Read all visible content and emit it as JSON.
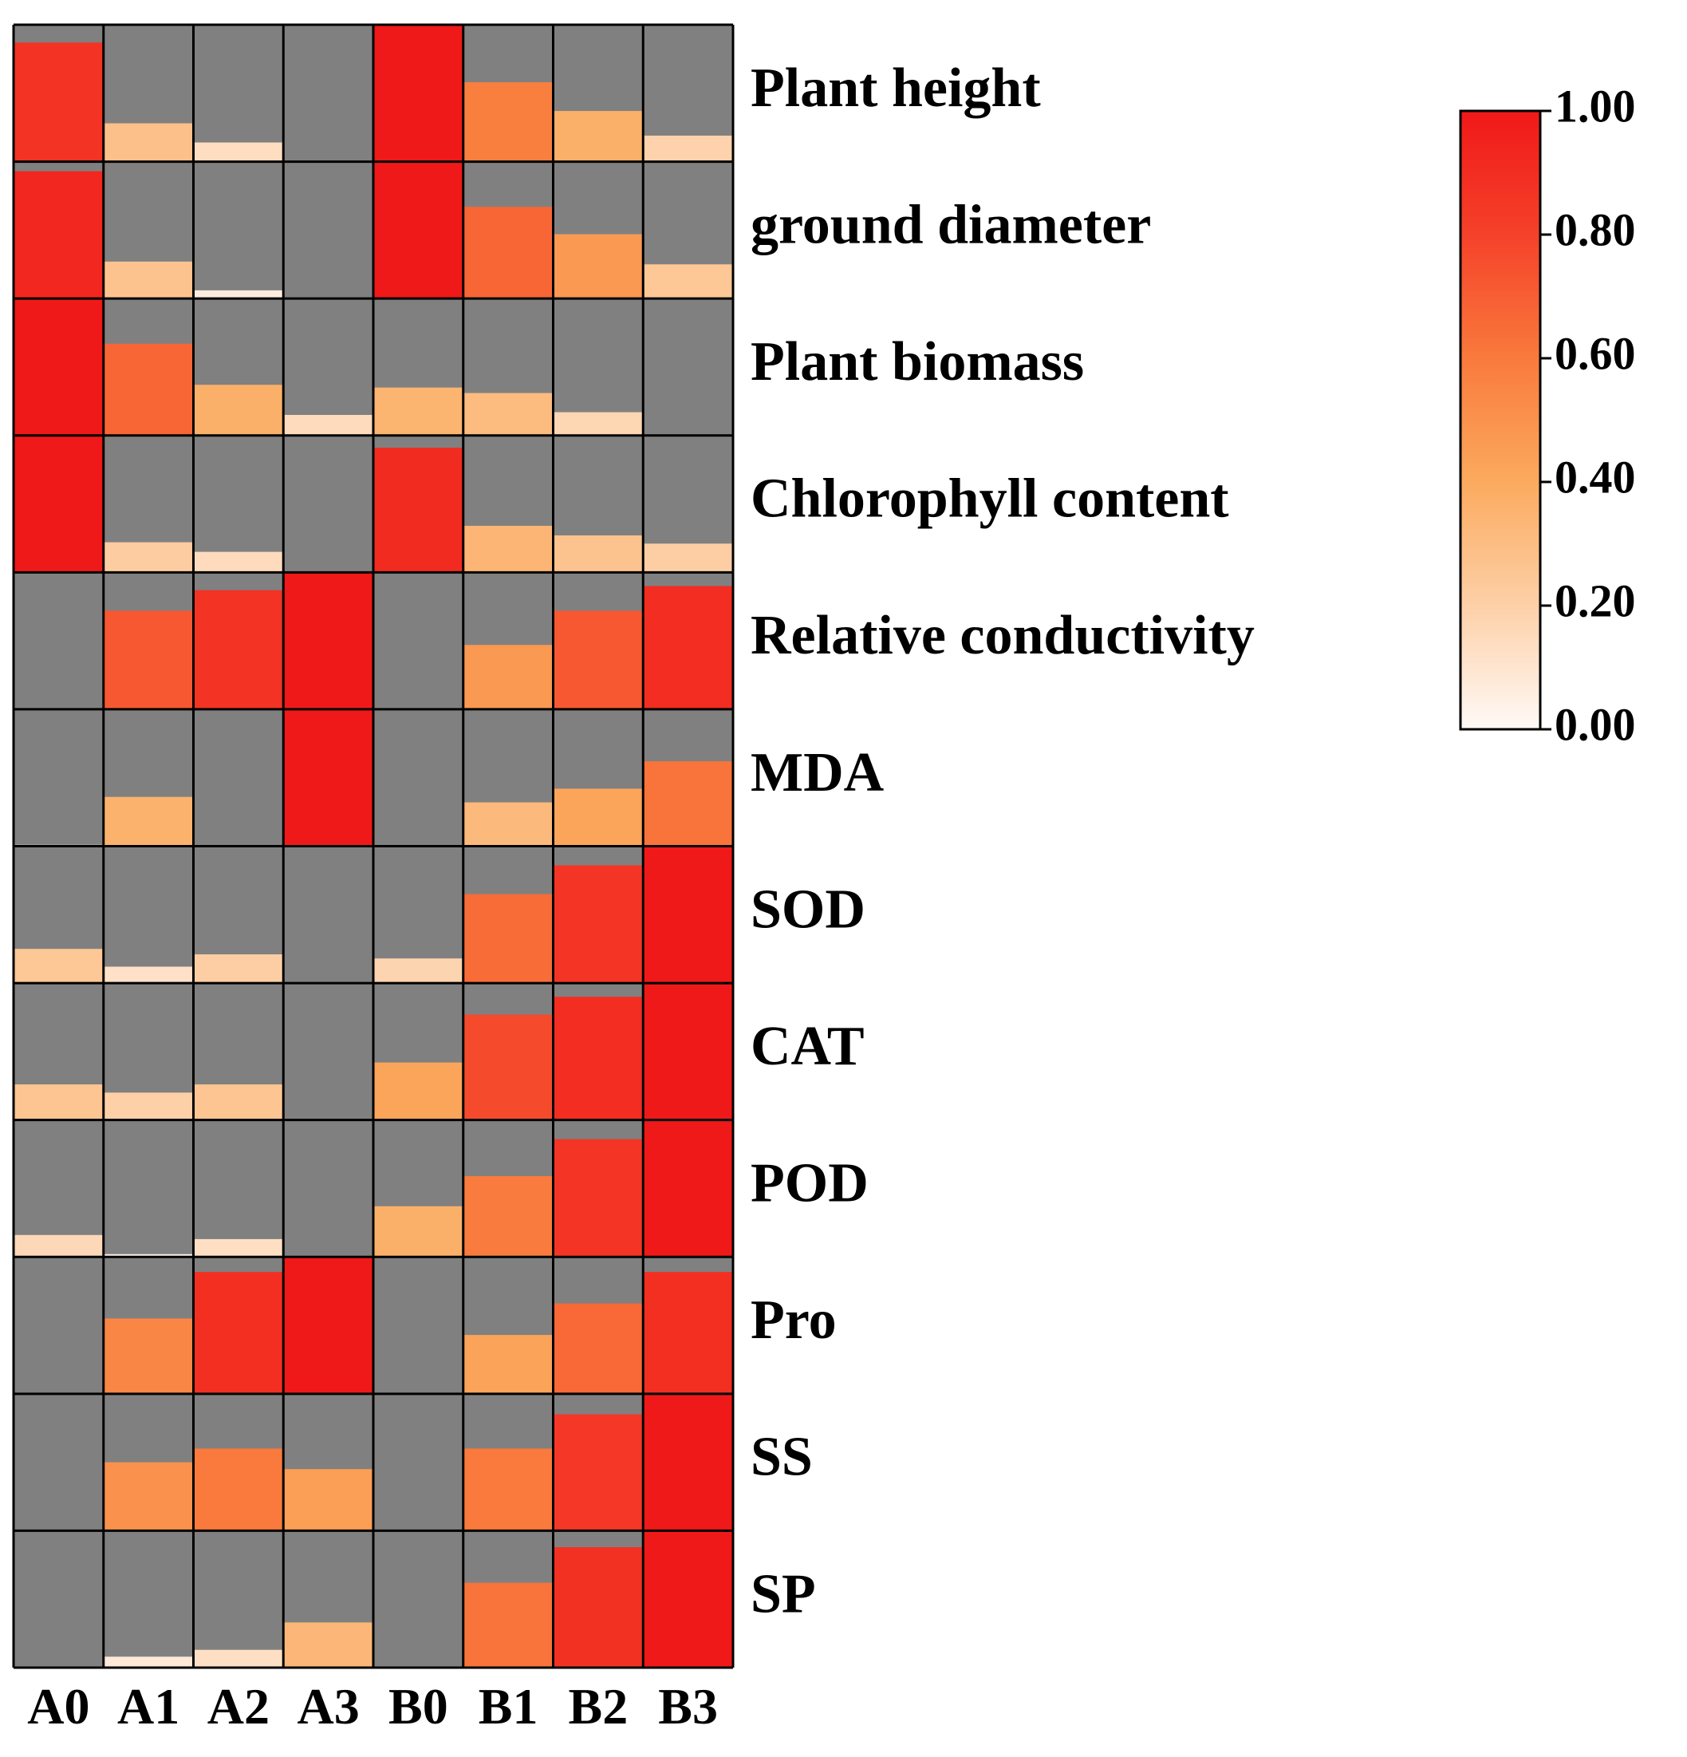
{
  "chart_data": {
    "type": "heatmap",
    "style": "bar-filled cells (fill height proportional to value)",
    "title": "",
    "xlabel": "",
    "ylabel": "",
    "columns": [
      "A0",
      "A1",
      "A2",
      "A3",
      "B0",
      "B1",
      "B2",
      "B3"
    ],
    "rows": [
      "Plant height",
      "ground diameter",
      "Plant biomass",
      "Chlorophyll content",
      "Relative conductivity",
      "MDA",
      "SOD",
      "CAT",
      "POD",
      "Pro",
      "SS",
      "SP"
    ],
    "values": [
      [
        0.87,
        0.28,
        0.14,
        0.0,
        1.0,
        0.58,
        0.37,
        0.19
      ],
      [
        0.93,
        0.27,
        0.06,
        0.0,
        1.0,
        0.67,
        0.47,
        0.25
      ],
      [
        1.0,
        0.67,
        0.37,
        0.15,
        0.35,
        0.31,
        0.17,
        0.0
      ],
      [
        1.0,
        0.22,
        0.15,
        0.0,
        0.91,
        0.34,
        0.27,
        0.21
      ],
      [
        0.0,
        0.72,
        0.87,
        1.0,
        0.0,
        0.47,
        0.72,
        0.9
      ],
      [
        0.01,
        0.36,
        0.0,
        1.0,
        0.0,
        0.32,
        0.42,
        0.62
      ],
      [
        0.25,
        0.12,
        0.21,
        0.0,
        0.18,
        0.65,
        0.86,
        1.0
      ],
      [
        0.26,
        0.2,
        0.26,
        0.0,
        0.42,
        0.77,
        0.9,
        1.0
      ],
      [
        0.16,
        0.02,
        0.13,
        0.0,
        0.37,
        0.59,
        0.86,
        1.0
      ],
      [
        0.0,
        0.55,
        0.89,
        1.0,
        0.0,
        0.43,
        0.66,
        0.89
      ],
      [
        0.0,
        0.5,
        0.6,
        0.45,
        0.0,
        0.6,
        0.85,
        1.0
      ],
      [
        0.0,
        0.08,
        0.13,
        0.33,
        0.0,
        0.62,
        0.88,
        1.0
      ]
    ],
    "colorbar": {
      "range": [
        0.0,
        1.0
      ],
      "ticks": [
        "0.00",
        "0.20",
        "0.40",
        "0.60",
        "0.80",
        "1.00"
      ],
      "stops": [
        "#fffaf7",
        "#fdd0a8",
        "#fbaa5e",
        "#f97a3c",
        "#f5412a",
        "#f01919"
      ]
    },
    "background_color": "#808080",
    "border_color": "#000000",
    "legend_position": "top-right"
  }
}
